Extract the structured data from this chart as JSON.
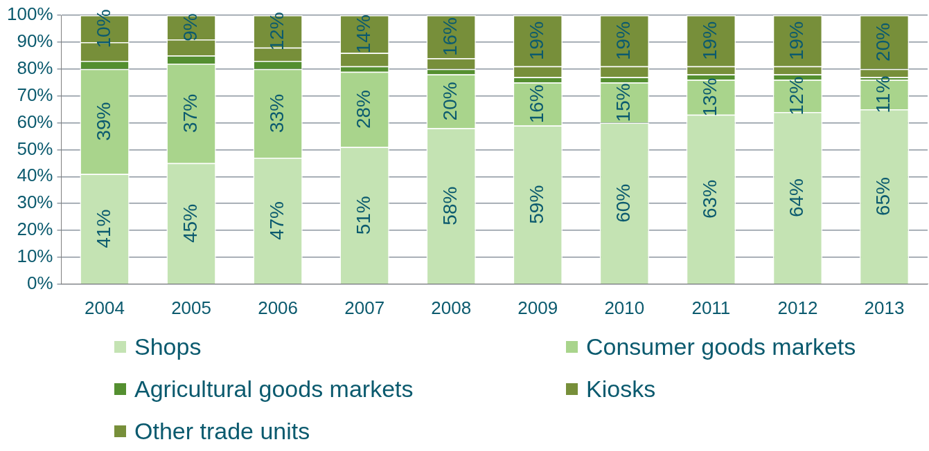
{
  "chart_data": {
    "type": "bar",
    "stacked": true,
    "categories": [
      "2004",
      "2005",
      "2006",
      "2007",
      "2008",
      "2009",
      "2010",
      "2011",
      "2012",
      "2013"
    ],
    "series": [
      {
        "name": "Shops",
        "color": "#c4e3b3",
        "values": [
          41,
          45,
          47,
          51,
          58,
          59,
          60,
          63,
          64,
          65
        ],
        "value_labels": [
          "41%",
          "45%",
          "47%",
          "51%",
          "58%",
          "59%",
          "60%",
          "63%",
          "64%",
          "65%"
        ]
      },
      {
        "name": "Consumer goods markets",
        "color": "#a9d48c",
        "values": [
          39,
          37,
          33,
          28,
          20,
          16,
          15,
          13,
          12,
          11
        ],
        "value_labels": [
          "39%",
          "37%",
          "33%",
          "28%",
          "20%",
          "16%",
          "15%",
          "13%",
          "12%",
          "11%"
        ]
      },
      {
        "name": "Agricultural goods markets",
        "color": "#548f30",
        "values": [
          3,
          3,
          3,
          2,
          2,
          2,
          2,
          2,
          2,
          1
        ]
      },
      {
        "name": "Kiosks",
        "color": "#778f3a",
        "values": [
          7,
          6,
          5,
          5,
          4,
          4,
          4,
          3,
          3,
          3
        ]
      },
      {
        "name": "Other trade units",
        "color": "#778f3a",
        "values": [
          10,
          9,
          12,
          14,
          16,
          19,
          19,
          19,
          19,
          20
        ],
        "value_labels": [
          "10%",
          "9%",
          "12%",
          "14%",
          "16%",
          "19%",
          "19%",
          "19%",
          "19%",
          "20%"
        ]
      }
    ],
    "ylim": [
      0,
      100
    ],
    "yticks": [
      {
        "value": 0,
        "label": "0%"
      },
      {
        "value": 10,
        "label": "10%"
      },
      {
        "value": 20,
        "label": "20%"
      },
      {
        "value": 30,
        "label": "30%"
      },
      {
        "value": 40,
        "label": "40%"
      },
      {
        "value": 50,
        "label": "50%"
      },
      {
        "value": 60,
        "label": "60%"
      },
      {
        "value": 70,
        "label": "70%"
      },
      {
        "value": 80,
        "label": "80%"
      },
      {
        "value": 90,
        "label": "90%"
      },
      {
        "value": 100,
        "label": "100%"
      }
    ],
    "grid": "y",
    "legend": "bottom"
  }
}
